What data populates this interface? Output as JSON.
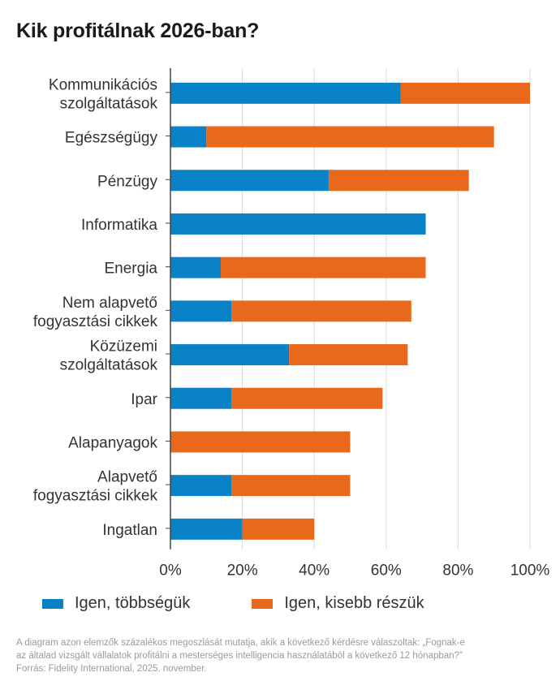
{
  "title": "Kik profitálnak 2026-ban?",
  "colors": {
    "majority": "#0a82c8",
    "minority": "#e8681c",
    "grid": "#d9d9d9",
    "axis": "#444444"
  },
  "chart_data": {
    "type": "bar",
    "orientation": "horizontal",
    "stacked": true,
    "title": "Kik profitálnak 2026-ban?",
    "categories": [
      [
        "Kommunikációs",
        "szolgáltatások"
      ],
      [
        "Egészségügy"
      ],
      [
        "Pénzügy"
      ],
      [
        "Informatika"
      ],
      [
        "Energia"
      ],
      [
        "Nem alapvető",
        "fogyasztási cikkek"
      ],
      [
        "Közüzemi",
        "szolgáltatások"
      ],
      [
        "Ipar"
      ],
      [
        "Alapanyagok"
      ],
      [
        "Alapvető",
        "fogyasztási cikkek"
      ],
      [
        "Ingatlan"
      ]
    ],
    "series": [
      {
        "name": "Igen, többségük",
        "values": [
          64,
          10,
          44,
          71,
          14,
          17,
          33,
          17,
          0,
          17,
          20
        ]
      },
      {
        "name": "Igen, kisebb részük",
        "values": [
          36,
          80,
          39,
          0,
          57,
          50,
          33,
          42,
          50,
          33,
          20
        ]
      }
    ],
    "xlim": [
      0,
      100
    ],
    "xticks": [
      0,
      20,
      40,
      60,
      80,
      100
    ],
    "xtick_labels": [
      "0%",
      "20%",
      "40%",
      "60%",
      "80%",
      "100%"
    ],
    "xlabel": "",
    "ylabel": "",
    "grid": true,
    "legend_position": "bottom"
  },
  "legend": {
    "majority": "Igen, többségük",
    "minority": "Igen, kisebb részük"
  },
  "footnote": {
    "line1": "A diagram azon elemzők százalékos megoszlását mutatja, akik a következő kérdésre válaszoltak: „Fognak-e",
    "line2": "az általad vizsgált vállalatok profitálni a mesterséges intelligencia használatából a következő 12 hónapban?”",
    "line3": "Forrás: Fidelity International, 2025. november."
  }
}
